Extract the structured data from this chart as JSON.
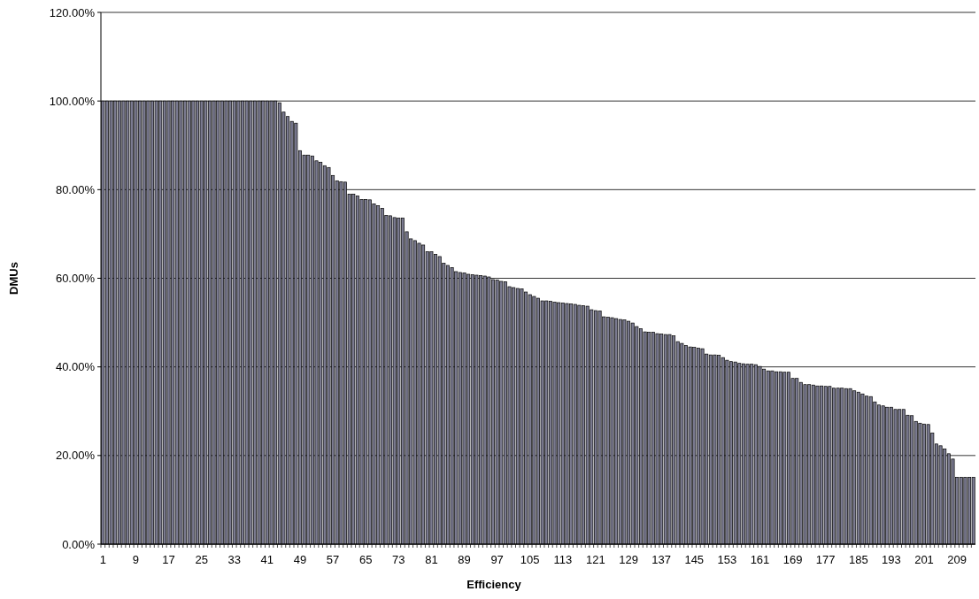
{
  "chart_data": {
    "type": "bar",
    "xlabel": "Efficiency",
    "ylabel": "DMUs",
    "categories": [
      "1",
      null,
      null,
      null,
      null,
      null,
      null,
      null,
      "9",
      null,
      null,
      null,
      null,
      null,
      null,
      null,
      "17",
      null,
      null,
      null,
      null,
      null,
      null,
      null,
      "25",
      null,
      null,
      null,
      null,
      null,
      null,
      null,
      "33",
      null,
      null,
      null,
      null,
      null,
      null,
      null,
      "41",
      null,
      null,
      null,
      null,
      null,
      null,
      null,
      "49",
      null,
      null,
      null,
      null,
      null,
      null,
      null,
      "57",
      null,
      null,
      null,
      null,
      null,
      null,
      null,
      "65",
      null,
      null,
      null,
      null,
      null,
      null,
      null,
      "73",
      null,
      null,
      null,
      null,
      null,
      null,
      null,
      "81",
      null,
      null,
      null,
      null,
      null,
      null,
      null,
      "89",
      null,
      null,
      null,
      null,
      null,
      null,
      null,
      "97",
      null,
      null,
      null,
      null,
      null,
      null,
      null,
      "105",
      null,
      null,
      null,
      null,
      null,
      null,
      null,
      "113",
      null,
      null,
      null,
      null,
      null,
      null,
      null,
      "121",
      null,
      null,
      null,
      null,
      null,
      null,
      null,
      "129",
      null,
      null,
      null,
      null,
      null,
      null,
      null,
      "137",
      null,
      null,
      null,
      null,
      null,
      null,
      null,
      "145",
      null,
      null,
      null,
      null,
      null,
      null,
      null,
      "153",
      null,
      null,
      null,
      null,
      null,
      null,
      null,
      "161",
      null,
      null,
      null,
      null,
      null,
      null,
      null,
      "169",
      null,
      null,
      null,
      null,
      null,
      null,
      null,
      "177",
      null,
      null,
      null,
      null,
      null,
      null,
      null,
      "185",
      null,
      null,
      null,
      null,
      null,
      null,
      null,
      "193",
      null,
      null,
      null,
      null,
      null,
      null,
      null,
      "201",
      null,
      null,
      null,
      null,
      null,
      null,
      null,
      "209",
      null,
      null,
      null,
      null
    ],
    "values": [
      100,
      100,
      100,
      100,
      100,
      100,
      100,
      100,
      100,
      100,
      100,
      100,
      100,
      100,
      100,
      100,
      100,
      100,
      100,
      100,
      100,
      100,
      100,
      100,
      100,
      100,
      100,
      100,
      100,
      100,
      100,
      100,
      100,
      100,
      100,
      100,
      100,
      100,
      100,
      100,
      100,
      100,
      100,
      99.6,
      97.5,
      96.5,
      95.4,
      95.0,
      88.8,
      87.8,
      87.8,
      87.6,
      86.5,
      86.2,
      85.4,
      85.0,
      83.2,
      82.0,
      81.8,
      81.7,
      79.0,
      79.0,
      78.6,
      77.8,
      77.8,
      77.7,
      76.8,
      76.4,
      75.8,
      74.2,
      74.1,
      73.7,
      73.6,
      73.6,
      70.5,
      68.9,
      68.5,
      67.9,
      67.5,
      66.0,
      66.0,
      65.4,
      64.9,
      63.4,
      62.9,
      62.4,
      61.5,
      61.3,
      61.2,
      60.9,
      60.8,
      60.7,
      60.6,
      60.5,
      60.3,
      59.7,
      59.6,
      59.3,
      59.2,
      58.1,
      57.9,
      57.7,
      57.6,
      56.9,
      56.3,
      55.9,
      55.5,
      54.9,
      54.9,
      54.8,
      54.6,
      54.5,
      54.4,
      54.3,
      54.2,
      54.1,
      53.9,
      53.8,
      53.7,
      52.9,
      52.7,
      52.6,
      51.3,
      51.2,
      51.1,
      50.9,
      50.7,
      50.6,
      50.3,
      49.9,
      49.1,
      48.6,
      47.9,
      47.8,
      47.8,
      47.5,
      47.4,
      47.3,
      47.3,
      47.0,
      45.7,
      45.3,
      44.8,
      44.5,
      44.4,
      44.2,
      44.1,
      42.9,
      42.7,
      42.7,
      42.6,
      42.1,
      41.5,
      41.2,
      41.1,
      40.8,
      40.7,
      40.6,
      40.6,
      40.5,
      40.1,
      39.5,
      39.1,
      39.1,
      38.9,
      38.9,
      38.8,
      38.8,
      37.4,
      37.4,
      36.5,
      36.0,
      36.0,
      35.9,
      35.7,
      35.7,
      35.6,
      35.6,
      35.2,
      35.2,
      35.2,
      35.1,
      35.1,
      34.6,
      34.3,
      33.9,
      33.4,
      33.3,
      32.1,
      31.4,
      31.2,
      30.9,
      30.9,
      30.4,
      30.4,
      30.4,
      29.1,
      29.0,
      27.7,
      27.3,
      27.1,
      27.0,
      25.1,
      22.6,
      22.2,
      21.5,
      20.4,
      19.2,
      15.1,
      15.1,
      15.1,
      15.1,
      15.1
    ],
    "color": "#7a7a90",
    "ylim": [
      0,
      120
    ],
    "yticks": [
      {
        "value": 0,
        "label": "0.00%"
      },
      {
        "value": 20,
        "label": "20.00%"
      },
      {
        "value": 40,
        "label": "40.00%"
      },
      {
        "value": 60,
        "label": "60.00%"
      },
      {
        "value": 80,
        "label": "80.00%"
      },
      {
        "value": 100,
        "label": "100.00%"
      },
      {
        "value": 120,
        "label": "120.00%"
      }
    ],
    "grid": "y"
  }
}
